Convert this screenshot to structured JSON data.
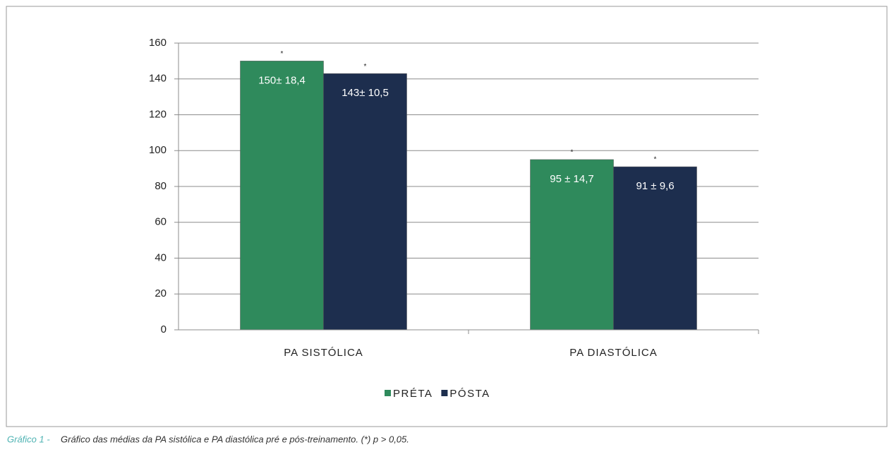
{
  "chart_data": {
    "type": "bar",
    "categories": [
      "PA SISTÓLICA",
      "PA DIASTÓLICA"
    ],
    "series": [
      {
        "name": "PRÉTA",
        "color": "#2f8a5c",
        "values": [
          150,
          95
        ],
        "value_labels": [
          "150± 18,4",
          "95 ± 14,7"
        ],
        "significance_marks": [
          "*",
          "*"
        ]
      },
      {
        "name": "PÓSTA",
        "color": "#1d2e4e",
        "values": [
          143,
          91
        ],
        "value_labels": [
          "143± 10,5",
          "91 ± 9,6"
        ],
        "significance_marks": [
          "*",
          "*"
        ]
      }
    ],
    "ylim": [
      0,
      160
    ],
    "yticks": [
      0,
      20,
      40,
      60,
      80,
      100,
      120,
      140,
      160
    ],
    "grid": true,
    "legend": "bottom",
    "caption_label": "Gráfico 1 -",
    "caption": "Gráfico das médias da PA sistólica e PA diastólica pré e pós-treinamento. (*) p > 0,05."
  }
}
